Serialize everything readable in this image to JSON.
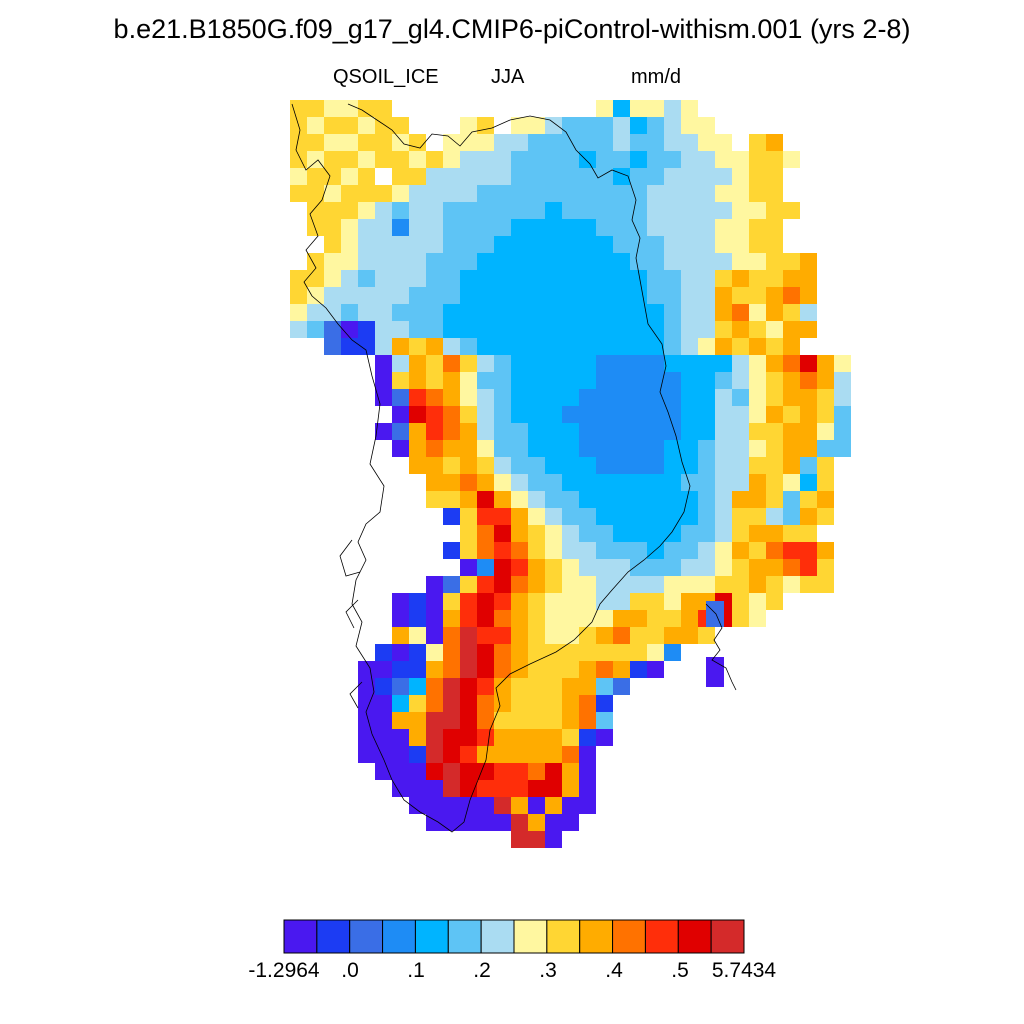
{
  "title": "b.e21.B1850G.f09_g17_gl4.CMIP6-piControl-withism.001 (yrs 2-8)",
  "subtitle": {
    "variable": "QSOIL_ICE",
    "season": "JJA",
    "units": "mm/d"
  },
  "colorbar": {
    "colors": [
      "#4a18f0",
      "#1c3cf3",
      "#3a6ee6",
      "#1e8cf5",
      "#00b4ff",
      "#5ec4f5",
      "#aadcf2",
      "#fff7a0",
      "#ffd633",
      "#ffac00",
      "#ff7200",
      "#ff2e0a",
      "#e00000",
      "#d42a2a"
    ],
    "labels": [
      "-1.2964",
      ".0",
      ".1",
      ".2",
      ".3",
      ".4",
      ".5",
      "5.7434"
    ]
  }
}
